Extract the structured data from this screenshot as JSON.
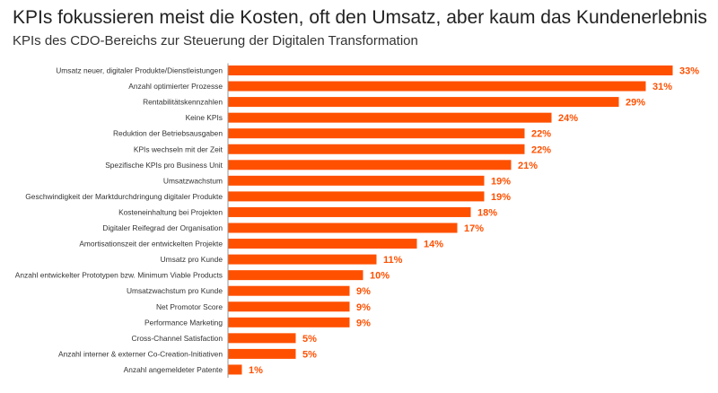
{
  "chart_data": {
    "type": "bar",
    "orientation": "horizontal",
    "title": "KPIs fokussieren meist die Kosten, oft den Umsatz, aber kaum das Kundenerlebnis",
    "subtitle": "KPIs des CDO-Bereichs zur Steuerung der Digitalen Transformation",
    "categories": [
      "Umsatz neuer, digitaler Produkte/Dienstleistungen",
      "Anzahl optimierter Prozesse",
      "Rentabilitätskennzahlen",
      "Keine KPIs",
      "Reduktion der Betriebsausgaben",
      "KPIs wechseln mit der Zeit",
      "Spezifische KPIs pro Business Unit",
      "Umsatzwachstum",
      "Geschwindigkeit der Marktdurchdringung digitaler Produkte",
      "Kosteneinhaltung bei Projekten",
      "Digitaler Reifegrad der Organisation",
      "Amortisationszeit der entwickelten Projekte",
      "Umsatz pro Kunde",
      "Anzahl entwickelter Prototypen bzw. Minimum Viable Products",
      "Umsatzwachstum pro Kunde",
      "Net Promotor Score",
      "Performance Marketing",
      "Cross-Channel Satisfaction",
      "Anzahl interner & externer Co-Creation-Initiativen",
      "Anzahl angemeldeter Patente"
    ],
    "values": [
      33,
      31,
      29,
      24,
      22,
      22,
      21,
      19,
      19,
      18,
      17,
      14,
      11,
      10,
      9,
      9,
      9,
      5,
      5,
      1
    ],
    "value_labels": [
      "33%",
      "31%",
      "29%",
      "24%",
      "22%",
      "22%",
      "21%",
      "19%",
      "19%",
      "18%",
      "17%",
      "14%",
      "11%",
      "10%",
      "9%",
      "9%",
      "9%",
      "5%",
      "5%",
      "1%"
    ],
    "unit": "%",
    "xlim": [
      0,
      33
    ],
    "grid": false,
    "bar_color": "#ff5000"
  }
}
